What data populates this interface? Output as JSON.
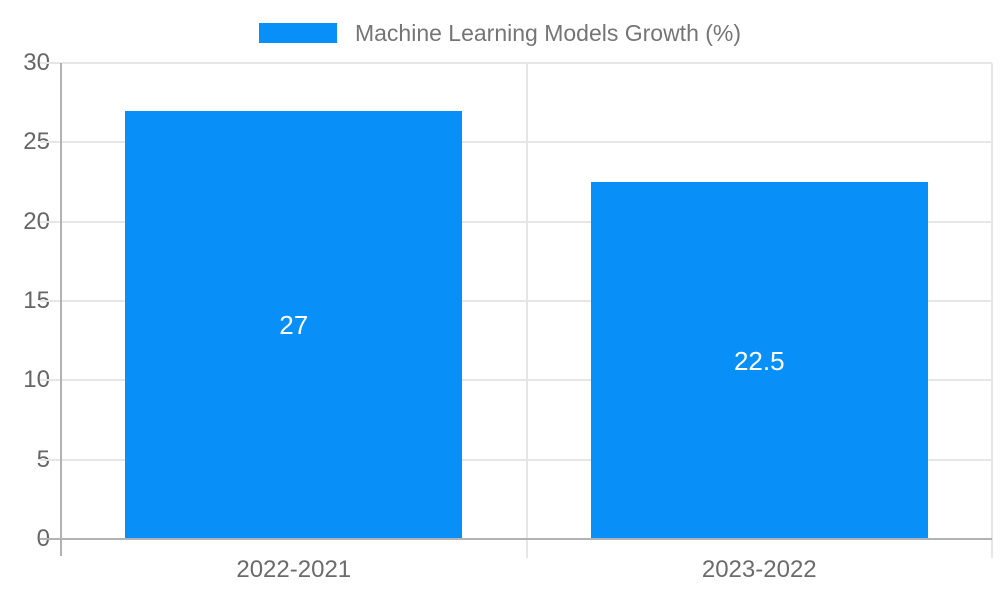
{
  "legend": {
    "label": "Machine Learning Models Growth (%)"
  },
  "chart_data": {
    "type": "bar",
    "title": "Machine Learning Models Growth (%)",
    "categories": [
      "2022-2021",
      "2023-2022"
    ],
    "values": [
      27,
      22.5
    ],
    "value_labels": [
      "27",
      "22.5"
    ],
    "xlabel": "",
    "ylabel": "",
    "ylim": [
      0,
      30
    ],
    "yticks": [
      0,
      5,
      10,
      15,
      20,
      25,
      30
    ],
    "grid": true,
    "legend_position": "top",
    "colors": {
      "bar": "#0890f8",
      "gridline": "#e6e6e6",
      "axis_line": "#b2b2b2",
      "tick_label": "#666666",
      "category_label": "#6b6b6b",
      "title": "#757575",
      "value_label": "#ffffff",
      "background": "#ffffff"
    }
  }
}
